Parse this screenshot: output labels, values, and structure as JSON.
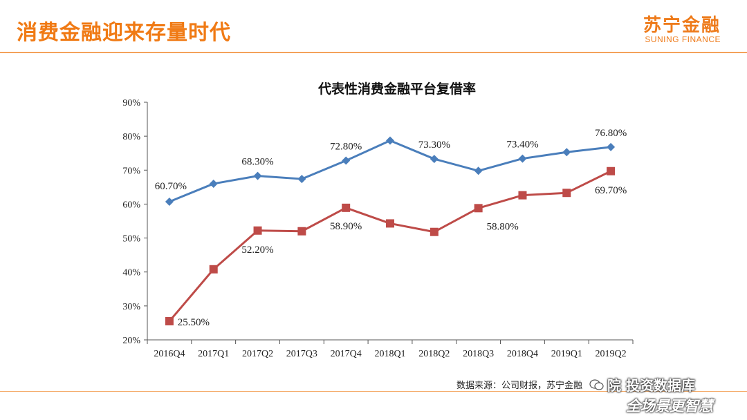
{
  "slide": {
    "title": "消费金融迎来存量时代",
    "logo_cn": "苏宁金融",
    "logo_en": "SUNING FINANCE",
    "source_note": "数据来源：公司财报，苏宁金融",
    "watermark_line1": "院 投资数据库",
    "watermark_line2": "全场景更智慧"
  },
  "colors": {
    "accent": "#F07A14",
    "series_blue": "#4A7EBB",
    "series_red": "#BE4B48"
  },
  "chart_data": {
    "type": "line",
    "title": "代表性消费金融平台复借率",
    "xlabel": "",
    "ylabel": "",
    "categories": [
      "2016Q4",
      "2017Q1",
      "2017Q2",
      "2017Q3",
      "2017Q4",
      "2018Q1",
      "2018Q2",
      "2018Q3",
      "2018Q4",
      "2019Q1",
      "2019Q2"
    ],
    "ylim": [
      20,
      90
    ],
    "yticks": [
      "20%",
      "30%",
      "40%",
      "50%",
      "60%",
      "70%",
      "80%",
      "90%"
    ],
    "grid": false,
    "legend": "none",
    "series": [
      {
        "marker": "diamond",
        "color": "#4A7EBB",
        "values": [
          60.7,
          66.0,
          68.3,
          67.4,
          72.8,
          78.7,
          73.3,
          69.8,
          73.4,
          75.3,
          76.8
        ],
        "labels": [
          "60.70%",
          "",
          "68.30%",
          "",
          "72.80%",
          "",
          "73.30%",
          "",
          "73.40%",
          "",
          "76.80%"
        ]
      },
      {
        "marker": "square",
        "color": "#BE4B48",
        "values": [
          25.5,
          40.8,
          52.2,
          52.0,
          58.9,
          54.3,
          51.8,
          58.8,
          62.6,
          63.3,
          69.7
        ],
        "labels": [
          "25.50%",
          "",
          "52.20%",
          "",
          "58.90%",
          "",
          "",
          "58.80%",
          "",
          "",
          "69.70%"
        ]
      }
    ]
  }
}
